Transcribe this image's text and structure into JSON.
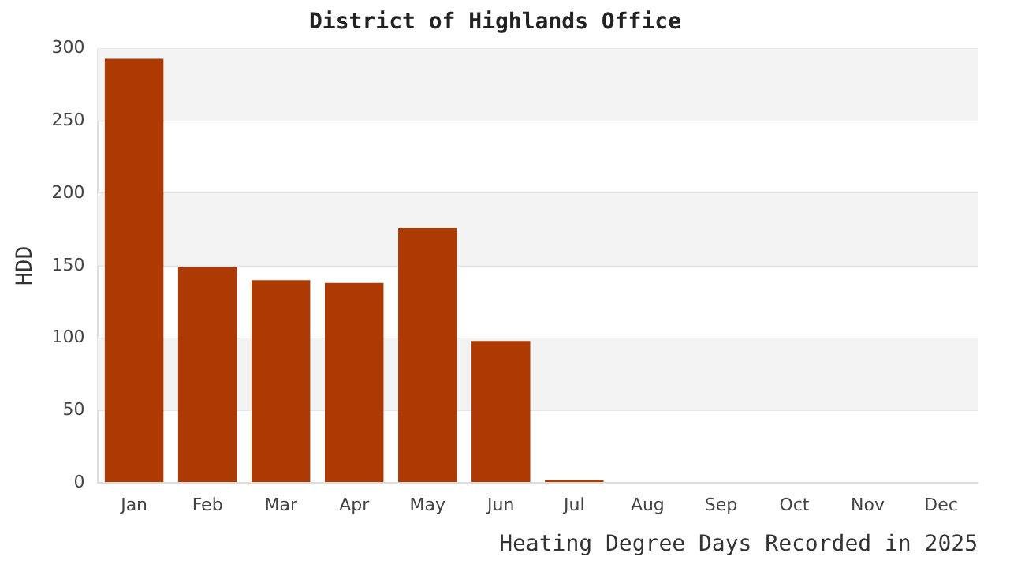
{
  "chart_data": {
    "type": "bar",
    "title": "District of Highlands Office",
    "xlabel": "Heating Degree Days Recorded in 2025",
    "ylabel": "HDD",
    "categories": [
      "Jan",
      "Feb",
      "Mar",
      "Apr",
      "May",
      "Jun",
      "Jul",
      "Aug",
      "Sep",
      "Oct",
      "Nov",
      "Dec"
    ],
    "values": [
      293,
      149,
      140,
      138,
      176,
      98,
      2,
      0,
      0,
      0,
      0,
      0
    ],
    "color": "#ad3a03",
    "ylim": [
      0,
      300
    ],
    "yticks": [
      0,
      50,
      100,
      150,
      200,
      250,
      300
    ],
    "grid": "y",
    "legend": false
  }
}
